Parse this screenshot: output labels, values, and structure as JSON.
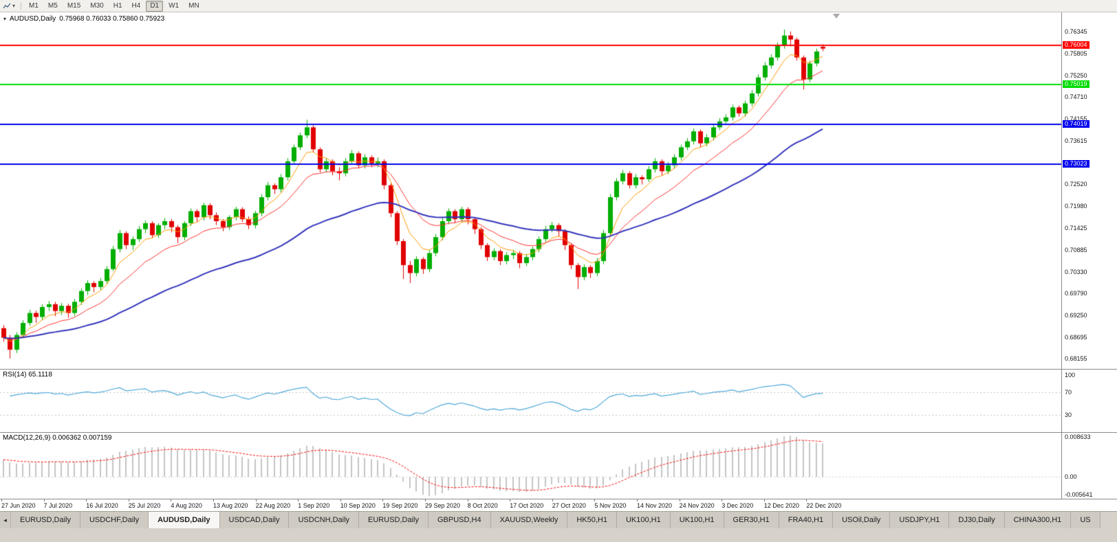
{
  "icons": {
    "caret_down": "▾",
    "tab_scroll_left": "◄"
  },
  "toolbar": {
    "timeframes": [
      "M1",
      "M5",
      "M15",
      "M30",
      "H1",
      "H4",
      "D1",
      "W1",
      "MN"
    ],
    "active_timeframe": "D1"
  },
  "chart_header": {
    "symbol_label": "AUDUSD,Daily",
    "ohlc": "0.75968 0.76033 0.75860 0.75923"
  },
  "chart_data": {
    "type": "candlestick",
    "symbol": "AUDUSD",
    "timeframe": "Daily",
    "ylim": [
      0.679,
      0.7683
    ],
    "up_color": "#00AE00",
    "down_color": "#E00000",
    "price_ticks": [
      "0.76345",
      "0.75805",
      "0.75250",
      "0.74710",
      "0.74155",
      "0.73615",
      "0.72520",
      "0.71980",
      "0.71425",
      "0.70885",
      "0.70330",
      "0.69790",
      "0.69250",
      "0.68695",
      "0.68155"
    ],
    "hlines": [
      {
        "price": 0.76004,
        "label": "0.76004",
        "color": "#FF0000",
        "text": "#FFFFFF"
      },
      {
        "price": 0.75019,
        "label": "0.75019",
        "color": "#00DC00",
        "text": "#FFFFFF"
      },
      {
        "price": 0.74019,
        "label": "0.74019",
        "color": "#0000EE",
        "text": "#FFFFFF"
      },
      {
        "price": 0.73023,
        "label": "0.73023",
        "color": "#0000EE",
        "text": "#FFFFFF"
      }
    ],
    "moving_averages": [
      {
        "period": 6,
        "method": "ema",
        "color": "#FF9900",
        "width": 1
      },
      {
        "period": 14,
        "method": "ema",
        "color": "#FF3030",
        "width": 1
      },
      {
        "period": 45,
        "method": "ema",
        "color": "#3333BB",
        "width": 2
      }
    ],
    "date_labels": [
      "27 Jun 2020",
      "7 Jul 2020",
      "16 Jul 2020",
      "25 Jul 2020",
      "4 Aug 2020",
      "13 Aug 2020",
      "22 Aug 2020",
      "1 Sep 2020",
      "10 Sep 2020",
      "19 Sep 2020",
      "29 Sep 2020",
      "8 Oct 2020",
      "17 Oct 2020",
      "27 Oct 2020",
      "5 Nov 2020",
      "14 Nov 2020",
      "24 Nov 2020",
      "3 Dec 2020",
      "12 Dec 2020",
      "22 Dec 2020"
    ],
    "candles": [
      [
        0.6892,
        0.69,
        0.6858,
        0.6868
      ],
      [
        0.6868,
        0.6875,
        0.6816,
        0.6838
      ],
      [
        0.6838,
        0.6882,
        0.683,
        0.6875
      ],
      [
        0.6875,
        0.6912,
        0.6868,
        0.6905
      ],
      [
        0.6905,
        0.6938,
        0.6898,
        0.693
      ],
      [
        0.693,
        0.6936,
        0.6905,
        0.692
      ],
      [
        0.692,
        0.6952,
        0.6912,
        0.6945
      ],
      [
        0.6945,
        0.696,
        0.6935,
        0.6952
      ],
      [
        0.6952,
        0.6958,
        0.6922,
        0.6935
      ],
      [
        0.6935,
        0.6955,
        0.6925,
        0.6948
      ],
      [
        0.6948,
        0.6953,
        0.6918,
        0.693
      ],
      [
        0.693,
        0.6965,
        0.6922,
        0.6958
      ],
      [
        0.6958,
        0.6992,
        0.695,
        0.6985
      ],
      [
        0.6985,
        0.7012,
        0.6975,
        0.7005
      ],
      [
        0.7005,
        0.701,
        0.6982,
        0.6995
      ],
      [
        0.6995,
        0.7018,
        0.6988,
        0.701
      ],
      [
        0.701,
        0.7048,
        0.7002,
        0.704
      ],
      [
        0.704,
        0.7098,
        0.7035,
        0.709
      ],
      [
        0.709,
        0.7138,
        0.7082,
        0.713
      ],
      [
        0.713,
        0.7135,
        0.709,
        0.71
      ],
      [
        0.71,
        0.7122,
        0.7088,
        0.7115
      ],
      [
        0.7115,
        0.7148,
        0.7108,
        0.714
      ],
      [
        0.714,
        0.7162,
        0.713,
        0.7155
      ],
      [
        0.7155,
        0.716,
        0.7118,
        0.7125
      ],
      [
        0.7125,
        0.7155,
        0.7118,
        0.715
      ],
      [
        0.715,
        0.7168,
        0.714,
        0.716
      ],
      [
        0.716,
        0.7165,
        0.7132,
        0.7145
      ],
      [
        0.7145,
        0.715,
        0.7105,
        0.712
      ],
      [
        0.712,
        0.716,
        0.7112,
        0.7155
      ],
      [
        0.7155,
        0.7192,
        0.7148,
        0.7185
      ],
      [
        0.7185,
        0.719,
        0.7158,
        0.717
      ],
      [
        0.717,
        0.7206,
        0.7162,
        0.72
      ],
      [
        0.72,
        0.7205,
        0.7165,
        0.7175
      ],
      [
        0.7175,
        0.7182,
        0.715,
        0.716
      ],
      [
        0.716,
        0.7165,
        0.7135,
        0.7145
      ],
      [
        0.7145,
        0.7175,
        0.7138,
        0.717
      ],
      [
        0.717,
        0.7196,
        0.7162,
        0.719
      ],
      [
        0.719,
        0.7195,
        0.7158,
        0.7165
      ],
      [
        0.7165,
        0.7172,
        0.714,
        0.715
      ],
      [
        0.715,
        0.7186,
        0.7142,
        0.718
      ],
      [
        0.718,
        0.7228,
        0.7172,
        0.722
      ],
      [
        0.722,
        0.7258,
        0.7212,
        0.725
      ],
      [
        0.725,
        0.7255,
        0.7228,
        0.724
      ],
      [
        0.724,
        0.7278,
        0.7232,
        0.727
      ],
      [
        0.727,
        0.7318,
        0.7262,
        0.731
      ],
      [
        0.731,
        0.7352,
        0.7302,
        0.7345
      ],
      [
        0.7345,
        0.7382,
        0.7338,
        0.7375
      ],
      [
        0.7375,
        0.7414,
        0.7368,
        0.7395
      ],
      [
        0.7395,
        0.74,
        0.7332,
        0.734
      ],
      [
        0.734,
        0.7345,
        0.7282,
        0.729
      ],
      [
        0.729,
        0.7318,
        0.7282,
        0.731
      ],
      [
        0.731,
        0.7315,
        0.7275,
        0.7285
      ],
      [
        0.7285,
        0.7295,
        0.7262,
        0.728
      ],
      [
        0.728,
        0.7318,
        0.7272,
        0.731
      ],
      [
        0.731,
        0.7338,
        0.7302,
        0.733
      ],
      [
        0.733,
        0.7335,
        0.7292,
        0.73
      ],
      [
        0.73,
        0.7328,
        0.7292,
        0.732
      ],
      [
        0.732,
        0.7325,
        0.7295,
        0.7305
      ],
      [
        0.7305,
        0.732,
        0.7295,
        0.731
      ],
      [
        0.731,
        0.7315,
        0.724,
        0.725
      ],
      [
        0.725,
        0.7255,
        0.717,
        0.718
      ],
      [
        0.718,
        0.7185,
        0.71,
        0.711
      ],
      [
        0.711,
        0.7115,
        0.7015,
        0.705
      ],
      [
        0.705,
        0.706,
        0.7005,
        0.703
      ],
      [
        0.703,
        0.7072,
        0.7022,
        0.7065
      ],
      [
        0.7065,
        0.707,
        0.7028,
        0.704
      ],
      [
        0.704,
        0.7088,
        0.7032,
        0.708
      ],
      [
        0.708,
        0.7128,
        0.7072,
        0.712
      ],
      [
        0.712,
        0.7168,
        0.7112,
        0.716
      ],
      [
        0.716,
        0.7192,
        0.7152,
        0.7185
      ],
      [
        0.7185,
        0.719,
        0.7155,
        0.7165
      ],
      [
        0.7165,
        0.7196,
        0.7158,
        0.719
      ],
      [
        0.719,
        0.7195,
        0.7152,
        0.7165
      ],
      [
        0.7165,
        0.717,
        0.7128,
        0.714
      ],
      [
        0.714,
        0.7145,
        0.709,
        0.71
      ],
      [
        0.71,
        0.7105,
        0.706,
        0.707
      ],
      [
        0.707,
        0.7092,
        0.7062,
        0.7085
      ],
      [
        0.7085,
        0.709,
        0.705,
        0.706
      ],
      [
        0.706,
        0.7082,
        0.7052,
        0.7075
      ],
      [
        0.7075,
        0.7088,
        0.7065,
        0.708
      ],
      [
        0.708,
        0.7085,
        0.7042,
        0.7055
      ],
      [
        0.7055,
        0.7078,
        0.7048,
        0.707
      ],
      [
        0.707,
        0.7096,
        0.7062,
        0.709
      ],
      [
        0.709,
        0.7122,
        0.7082,
        0.7115
      ],
      [
        0.7115,
        0.7148,
        0.7108,
        0.714
      ],
      [
        0.714,
        0.7158,
        0.7132,
        0.715
      ],
      [
        0.715,
        0.7155,
        0.7122,
        0.7135
      ],
      [
        0.7135,
        0.714,
        0.7088,
        0.71
      ],
      [
        0.71,
        0.7105,
        0.704,
        0.705
      ],
      [
        0.705,
        0.7055,
        0.699,
        0.702
      ],
      [
        0.702,
        0.7052,
        0.7012,
        0.7045
      ],
      [
        0.7045,
        0.705,
        0.7018,
        0.703
      ],
      [
        0.703,
        0.7068,
        0.7022,
        0.706
      ],
      [
        0.706,
        0.7138,
        0.7052,
        0.713
      ],
      [
        0.713,
        0.7228,
        0.7122,
        0.722
      ],
      [
        0.722,
        0.7268,
        0.7212,
        0.726
      ],
      [
        0.726,
        0.7288,
        0.7252,
        0.728
      ],
      [
        0.728,
        0.7285,
        0.7242,
        0.725
      ],
      [
        0.725,
        0.7278,
        0.7242,
        0.727
      ],
      [
        0.727,
        0.7275,
        0.7252,
        0.7265
      ],
      [
        0.7265,
        0.7298,
        0.7258,
        0.729
      ],
      [
        0.729,
        0.7318,
        0.7282,
        0.731
      ],
      [
        0.731,
        0.7315,
        0.7275,
        0.7285
      ],
      [
        0.7285,
        0.7308,
        0.7278,
        0.73
      ],
      [
        0.73,
        0.7328,
        0.7292,
        0.732
      ],
      [
        0.732,
        0.7352,
        0.7312,
        0.7345
      ],
      [
        0.7345,
        0.7368,
        0.7338,
        0.736
      ],
      [
        0.736,
        0.7392,
        0.7352,
        0.7385
      ],
      [
        0.7385,
        0.739,
        0.7345,
        0.7355
      ],
      [
        0.7355,
        0.7378,
        0.7348,
        0.737
      ],
      [
        0.737,
        0.7402,
        0.7362,
        0.7395
      ],
      [
        0.7395,
        0.7418,
        0.7388,
        0.741
      ],
      [
        0.741,
        0.7428,
        0.7402,
        0.742
      ],
      [
        0.742,
        0.7452,
        0.7412,
        0.7445
      ],
      [
        0.7445,
        0.745,
        0.7422,
        0.743
      ],
      [
        0.743,
        0.7462,
        0.7422,
        0.7455
      ],
      [
        0.7455,
        0.7488,
        0.7448,
        0.748
      ],
      [
        0.748,
        0.7528,
        0.7472,
        0.752
      ],
      [
        0.752,
        0.7558,
        0.7512,
        0.755
      ],
      [
        0.755,
        0.7578,
        0.7542,
        0.757
      ],
      [
        0.757,
        0.7608,
        0.7562,
        0.76
      ],
      [
        0.76,
        0.764,
        0.7592,
        0.7625
      ],
      [
        0.7625,
        0.7635,
        0.7598,
        0.7615
      ],
      [
        0.7615,
        0.762,
        0.7562,
        0.757
      ],
      [
        0.757,
        0.7575,
        0.749,
        0.7515
      ],
      [
        0.7515,
        0.7562,
        0.7508,
        0.7555
      ],
      [
        0.7555,
        0.7592,
        0.7548,
        0.7585
      ],
      [
        0.75968,
        0.76033,
        0.7586,
        0.75923
      ]
    ],
    "rsi": {
      "label": "RSI(14) 65.1118",
      "period": 14,
      "levels": [
        "100",
        "70",
        "30"
      ],
      "level_values": [
        100,
        70,
        30
      ],
      "dashed_levels": [
        70,
        30
      ],
      "color": "#4FA8D8"
    },
    "macd": {
      "label": "MACD(12,26,9) 0.006362 0.007159",
      "fast": 12,
      "slow": 26,
      "signal": 9,
      "axis_max": "0.008633",
      "axis_zero": "0.00",
      "axis_min": "-0.005641",
      "bar_color": "#C4C4C4",
      "signal_color": "#FF0000"
    }
  },
  "tabs": {
    "active_index": 2,
    "items": [
      "EURUSD,Daily",
      "USDCHF,Daily",
      "AUDUSD,Daily",
      "USDCAD,Daily",
      "USDCNH,Daily",
      "EURUSD,Daily",
      "GBPUSD,H4",
      "XAUUSD,Weekly",
      "HK50,H1",
      "UK100,H1",
      "UK100,H1",
      "GER30,H1",
      "FRA40,H1",
      "USOil,Daily",
      "USDJPY,H1",
      "DJ30,Daily",
      "CHINA300,H1",
      "US"
    ]
  }
}
